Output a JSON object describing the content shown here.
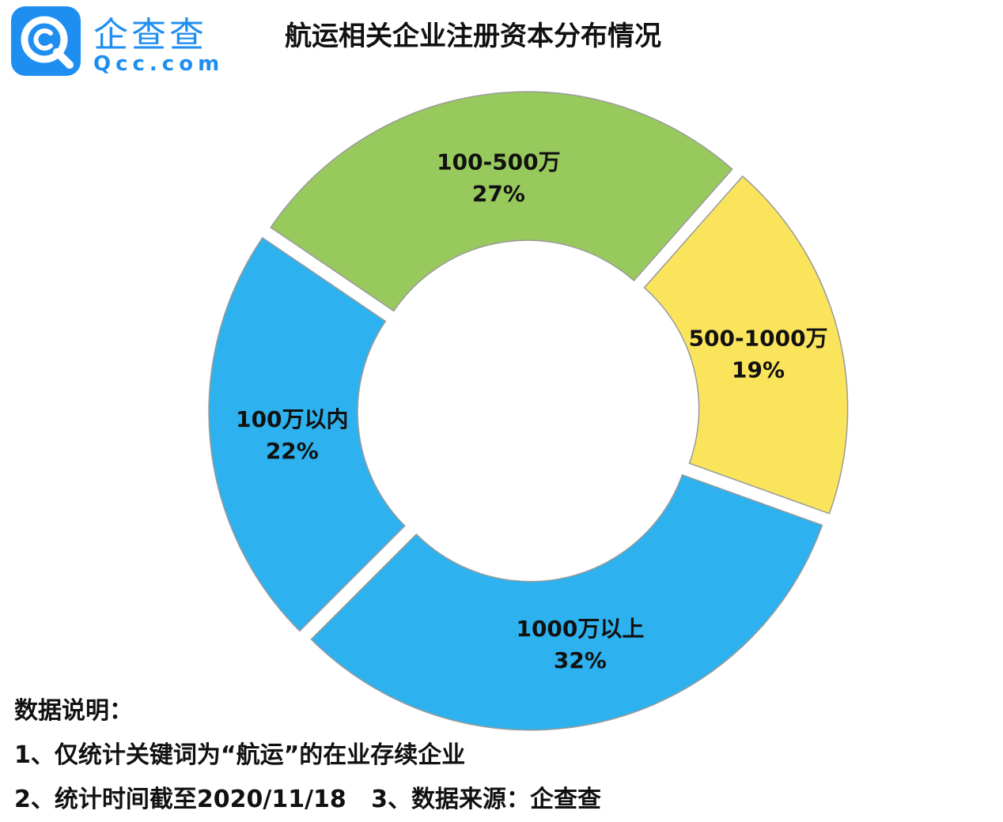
{
  "logo": {
    "name": "企查查",
    "domain": "Qcc.com",
    "brand_color": "#1f8ef1"
  },
  "chart_data": {
    "type": "pie",
    "title": "航运相关企业注册资本分布情况",
    "donut": true,
    "exploded": true,
    "series": [
      {
        "name": "",
        "slices": [
          {
            "label": "100万以内",
            "value": 22,
            "value_label": "22%",
            "color": "#2db2ef"
          },
          {
            "label": "100-500万",
            "value": 27,
            "value_label": "27%",
            "color": "#98c95d"
          },
          {
            "label": "500-1000万",
            "value": 19,
            "value_label": "19%",
            "color": "#fae45c"
          },
          {
            "label": "1000万以上",
            "value": 32,
            "value_label": "32%",
            "color": "#2db2ef"
          }
        ]
      }
    ],
    "legend": "none"
  },
  "notes": {
    "heading": "数据说明：",
    "line1": "1、仅统计关键词为“航运”的在业存续企业",
    "line2": "2、统计时间截至2020/11/18   3、数据来源：企查查"
  }
}
